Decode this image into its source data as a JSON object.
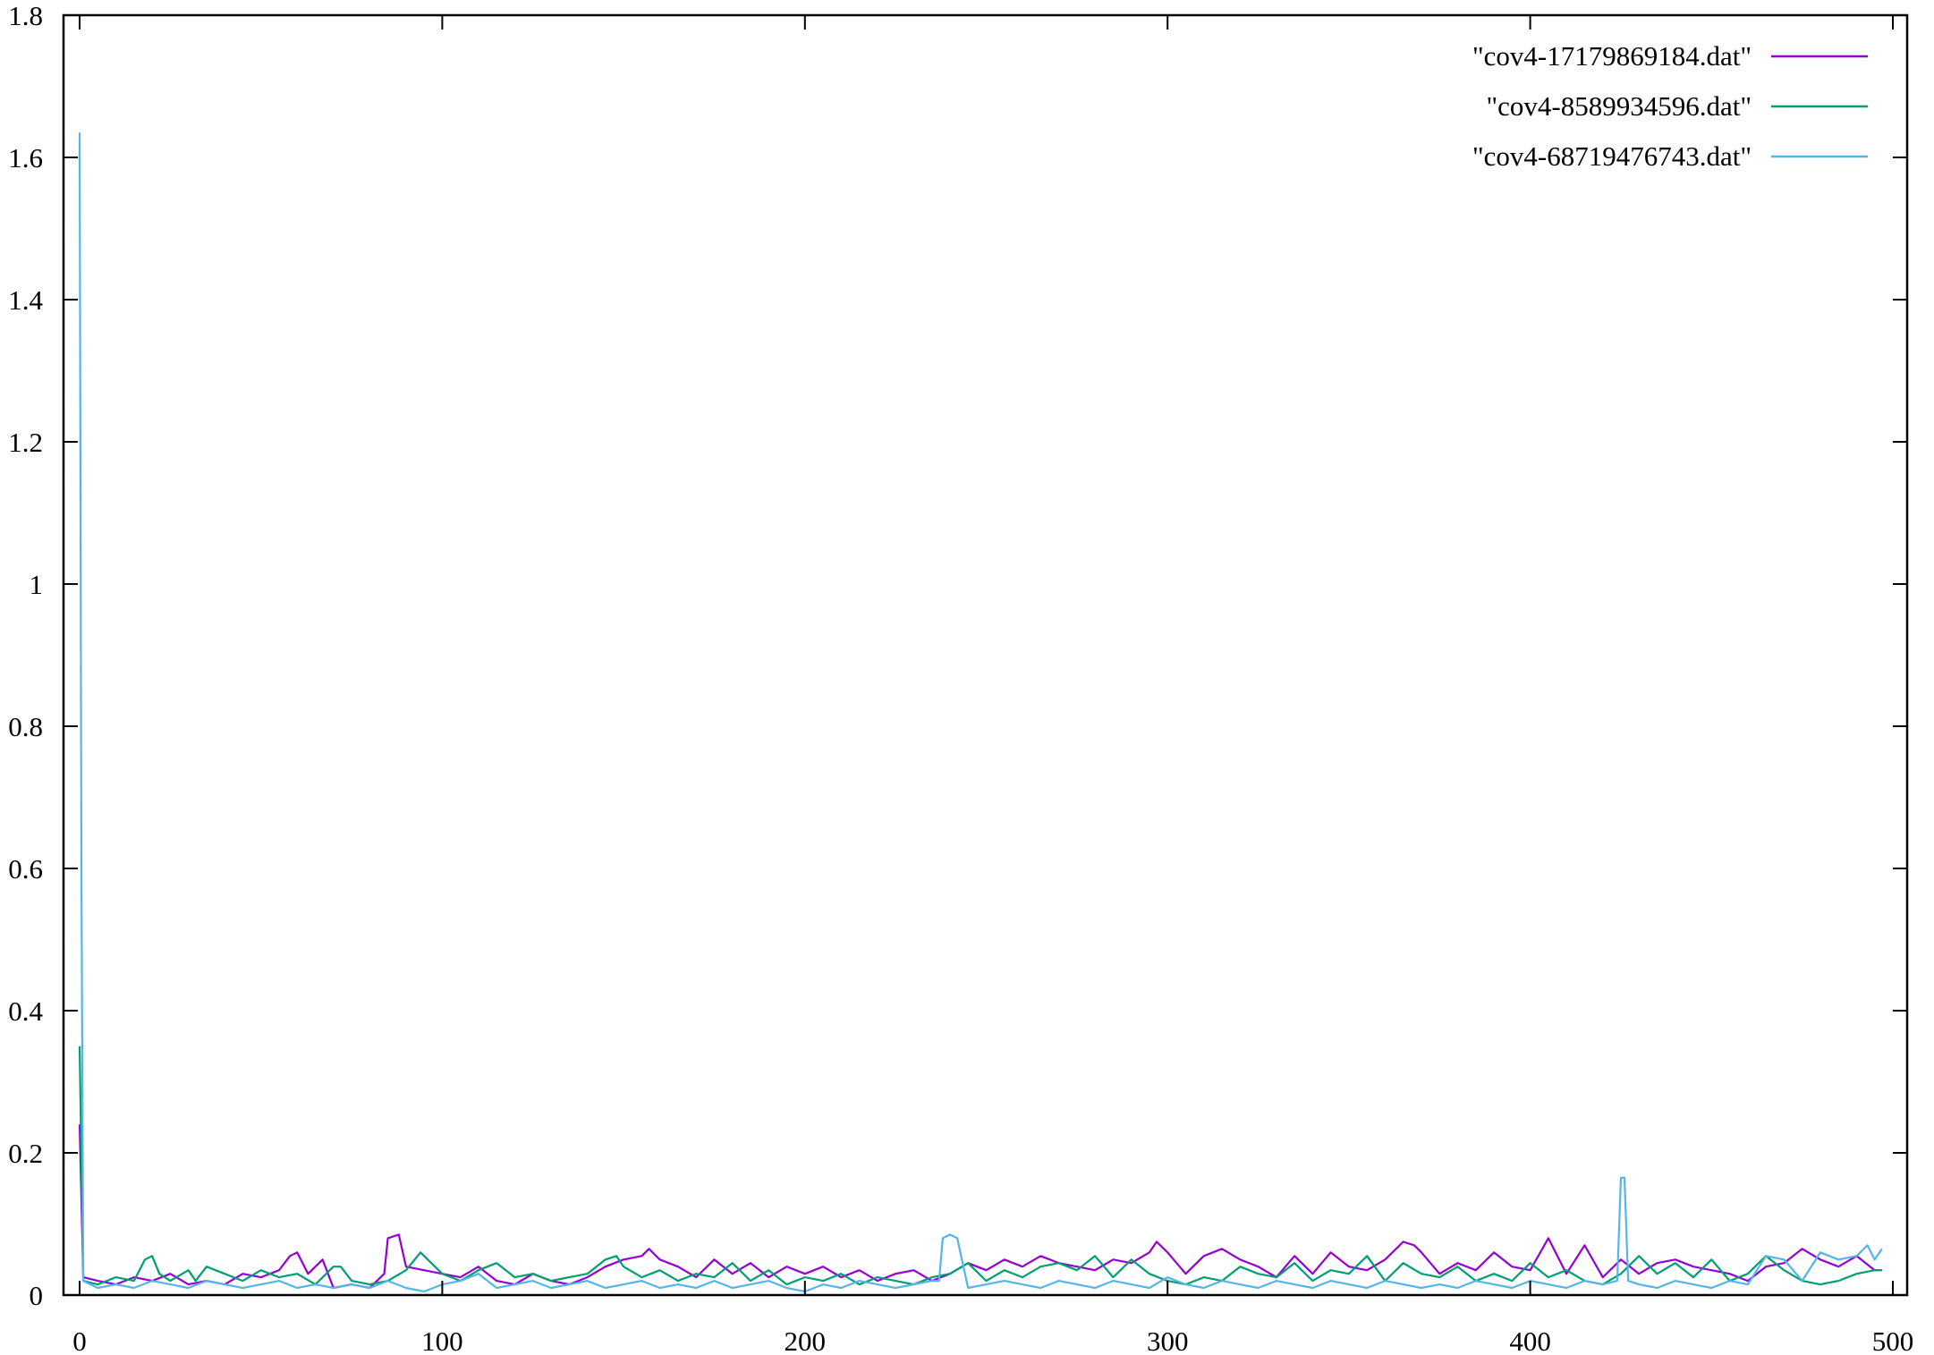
{
  "chart_data": {
    "type": "line",
    "title": "",
    "xlabel": "",
    "ylabel": "",
    "xlim": [
      0,
      500
    ],
    "ylim": [
      0,
      1.8
    ],
    "x_ticks": [
      0,
      100,
      200,
      300,
      400,
      500
    ],
    "y_ticks": [
      0,
      0.2,
      0.4,
      0.6,
      0.8,
      1,
      1.2,
      1.4,
      1.6,
      1.8
    ],
    "x_tick_labels": [
      "0",
      "100",
      "200",
      "300",
      "400",
      "500"
    ],
    "y_tick_labels": [
      "0",
      "0.2",
      "0.4",
      "0.6",
      "0.8",
      "1",
      "1.2",
      "1.4",
      "1.6",
      "1.8"
    ],
    "grid": false,
    "legend_position": "top-right",
    "series": [
      {
        "name": "\"cov4-17179869184.dat\"",
        "color": "#9400d3",
        "x": [
          0,
          1,
          5,
          10,
          15,
          20,
          25,
          30,
          35,
          40,
          45,
          50,
          55,
          58,
          60,
          63,
          67,
          70,
          75,
          80,
          84,
          85,
          88,
          90,
          95,
          100,
          105,
          110,
          115,
          120,
          125,
          130,
          135,
          140,
          145,
          150,
          155,
          157,
          160,
          165,
          170,
          175,
          180,
          185,
          190,
          195,
          200,
          205,
          210,
          215,
          220,
          225,
          230,
          235,
          240,
          245,
          250,
          255,
          260,
          265,
          270,
          275,
          280,
          285,
          290,
          295,
          297,
          300,
          305,
          310,
          315,
          320,
          325,
          330,
          335,
          340,
          345,
          350,
          355,
          360,
          365,
          368,
          370,
          375,
          380,
          385,
          390,
          395,
          400,
          405,
          410,
          415,
          420,
          425,
          430,
          435,
          440,
          445,
          450,
          455,
          460,
          465,
          470,
          475,
          480,
          485,
          490,
          495,
          497
        ],
        "y": [
          0.24,
          0.025,
          0.02,
          0.015,
          0.025,
          0.02,
          0.03,
          0.015,
          0.02,
          0.015,
          0.03,
          0.025,
          0.035,
          0.055,
          0.06,
          0.03,
          0.05,
          0.01,
          0.015,
          0.01,
          0.03,
          0.08,
          0.085,
          0.04,
          0.035,
          0.03,
          0.025,
          0.04,
          0.02,
          0.015,
          0.03,
          0.02,
          0.015,
          0.025,
          0.04,
          0.05,
          0.055,
          0.065,
          0.05,
          0.04,
          0.025,
          0.05,
          0.03,
          0.045,
          0.025,
          0.04,
          0.03,
          0.04,
          0.025,
          0.035,
          0.02,
          0.03,
          0.035,
          0.02,
          0.03,
          0.045,
          0.035,
          0.05,
          0.04,
          0.055,
          0.045,
          0.04,
          0.035,
          0.05,
          0.045,
          0.06,
          0.075,
          0.06,
          0.03,
          0.055,
          0.065,
          0.05,
          0.04,
          0.025,
          0.055,
          0.03,
          0.06,
          0.04,
          0.035,
          0.05,
          0.075,
          0.07,
          0.06,
          0.03,
          0.045,
          0.035,
          0.06,
          0.04,
          0.035,
          0.08,
          0.03,
          0.07,
          0.025,
          0.05,
          0.03,
          0.045,
          0.05,
          0.04,
          0.035,
          0.03,
          0.02,
          0.04,
          0.045,
          0.065,
          0.05,
          0.04,
          0.055,
          0.035,
          0.035
        ]
      },
      {
        "name": "\"cov4-8589934596.dat\"",
        "color": "#009e73",
        "x": [
          0,
          1,
          5,
          10,
          15,
          18,
          20,
          22,
          25,
          30,
          32,
          35,
          40,
          45,
          50,
          55,
          60,
          65,
          70,
          72,
          75,
          80,
          85,
          90,
          94,
          96,
          100,
          105,
          110,
          115,
          120,
          125,
          130,
          135,
          140,
          145,
          148,
          150,
          155,
          160,
          165,
          170,
          175,
          180,
          185,
          190,
          195,
          200,
          205,
          210,
          215,
          220,
          225,
          230,
          235,
          240,
          245,
          250,
          255,
          260,
          265,
          270,
          275,
          280,
          285,
          290,
          295,
          300,
          305,
          310,
          315,
          320,
          325,
          330,
          335,
          340,
          345,
          350,
          355,
          360,
          365,
          370,
          375,
          380,
          385,
          390,
          395,
          400,
          405,
          410,
          415,
          420,
          425,
          430,
          435,
          440,
          445,
          450,
          455,
          460,
          465,
          470,
          475,
          480,
          485,
          490,
          495,
          497
        ],
        "y": [
          0.35,
          0.02,
          0.015,
          0.025,
          0.02,
          0.05,
          0.055,
          0.03,
          0.02,
          0.035,
          0.02,
          0.04,
          0.03,
          0.02,
          0.035,
          0.025,
          0.03,
          0.015,
          0.04,
          0.04,
          0.02,
          0.015,
          0.02,
          0.035,
          0.06,
          0.05,
          0.03,
          0.02,
          0.035,
          0.045,
          0.025,
          0.03,
          0.02,
          0.025,
          0.03,
          0.05,
          0.055,
          0.04,
          0.025,
          0.035,
          0.02,
          0.03,
          0.025,
          0.045,
          0.02,
          0.035,
          0.015,
          0.025,
          0.02,
          0.03,
          0.015,
          0.025,
          0.02,
          0.015,
          0.025,
          0.03,
          0.045,
          0.02,
          0.035,
          0.025,
          0.04,
          0.045,
          0.035,
          0.055,
          0.025,
          0.05,
          0.03,
          0.02,
          0.015,
          0.025,
          0.02,
          0.04,
          0.03,
          0.025,
          0.045,
          0.02,
          0.035,
          0.03,
          0.055,
          0.02,
          0.045,
          0.03,
          0.025,
          0.04,
          0.02,
          0.03,
          0.02,
          0.045,
          0.025,
          0.035,
          0.02,
          0.015,
          0.03,
          0.055,
          0.03,
          0.045,
          0.025,
          0.05,
          0.02,
          0.03,
          0.055,
          0.035,
          0.02,
          0.015,
          0.02,
          0.03,
          0.035,
          0.035
        ]
      },
      {
        "name": "\"cov4-68719476743.dat\"",
        "color": "#56b4e9",
        "x": [
          0,
          0.5,
          1,
          5,
          10,
          15,
          20,
          25,
          30,
          35,
          40,
          45,
          50,
          55,
          60,
          65,
          70,
          75,
          80,
          85,
          90,
          95,
          100,
          105,
          110,
          115,
          120,
          125,
          130,
          135,
          140,
          145,
          150,
          155,
          160,
          165,
          170,
          175,
          180,
          185,
          190,
          195,
          200,
          205,
          210,
          215,
          220,
          225,
          230,
          235,
          237,
          238,
          240,
          242,
          245,
          250,
          255,
          260,
          265,
          270,
          275,
          280,
          285,
          290,
          295,
          300,
          305,
          310,
          315,
          320,
          325,
          330,
          335,
          340,
          345,
          350,
          355,
          360,
          365,
          370,
          375,
          380,
          385,
          390,
          395,
          400,
          405,
          410,
          415,
          420,
          424,
          425,
          426,
          427,
          430,
          435,
          440,
          445,
          450,
          455,
          460,
          465,
          470,
          475,
          480,
          485,
          490,
          493,
          495,
          497
        ],
        "y": [
          1.635,
          0.6,
          0.02,
          0.01,
          0.015,
          0.01,
          0.02,
          0.015,
          0.01,
          0.02,
          0.015,
          0.01,
          0.015,
          0.02,
          0.01,
          0.015,
          0.01,
          0.015,
          0.01,
          0.02,
          0.01,
          0.005,
          0.015,
          0.02,
          0.03,
          0.01,
          0.015,
          0.02,
          0.01,
          0.015,
          0.02,
          0.01,
          0.015,
          0.02,
          0.01,
          0.015,
          0.01,
          0.02,
          0.01,
          0.015,
          0.02,
          0.01,
          0.005,
          0.015,
          0.01,
          0.02,
          0.015,
          0.01,
          0.015,
          0.02,
          0.02,
          0.08,
          0.085,
          0.08,
          0.01,
          0.015,
          0.02,
          0.015,
          0.01,
          0.02,
          0.015,
          0.01,
          0.02,
          0.015,
          0.01,
          0.025,
          0.015,
          0.01,
          0.02,
          0.015,
          0.01,
          0.02,
          0.015,
          0.01,
          0.02,
          0.015,
          0.01,
          0.02,
          0.015,
          0.01,
          0.015,
          0.01,
          0.02,
          0.015,
          0.01,
          0.02,
          0.015,
          0.01,
          0.02,
          0.015,
          0.02,
          0.165,
          0.165,
          0.02,
          0.015,
          0.01,
          0.02,
          0.015,
          0.01,
          0.02,
          0.015,
          0.055,
          0.05,
          0.02,
          0.06,
          0.05,
          0.055,
          0.07,
          0.05,
          0.065
        ]
      }
    ]
  }
}
